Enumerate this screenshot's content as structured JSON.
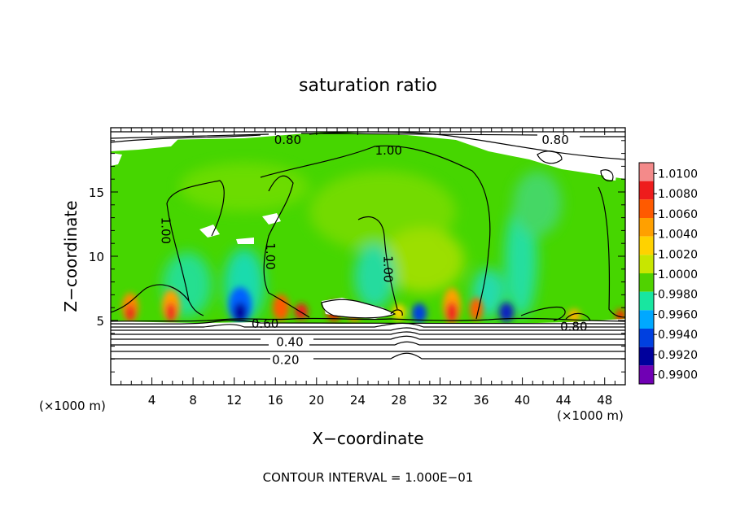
{
  "chart_data": {
    "type": "heatmap",
    "title": "saturation ratio",
    "xlabel": "X−coordinate",
    "ylabel": "Z−coordinate",
    "x_unit": "(×1000 m)",
    "y_unit": "(×1000 m)",
    "xlim": [
      0,
      50
    ],
    "ylim": [
      0,
      20
    ],
    "x_ticks": [
      4,
      8,
      12,
      16,
      20,
      24,
      28,
      32,
      36,
      40,
      44,
      48
    ],
    "y_ticks": [
      5,
      10,
      15
    ],
    "colorbar": {
      "levels": [
        "1.0100",
        "1.0080",
        "1.0060",
        "1.0040",
        "1.0020",
        "1.0000",
        "0.9980",
        "0.9960",
        "0.9940",
        "0.9920",
        "0.9900"
      ],
      "colors": [
        "#f48a8a",
        "#ee1c1c",
        "#ff5a00",
        "#ffa000",
        "#ffd200",
        "#c8e600",
        "#50d200",
        "#18e6a0",
        "#00a8ff",
        "#0040e0",
        "#00009c",
        "#7000b4"
      ],
      "placement": "right"
    },
    "contour_labels": [
      {
        "text": "0.80",
        "x": 17.2,
        "y": 19.1
      },
      {
        "text": "0.80",
        "x": 43.2,
        "y": 19.1
      },
      {
        "text": "1.00",
        "x": 27.0,
        "y": 18.3
      },
      {
        "text": "1.00",
        "x": 5.4,
        "y": 12.0
      },
      {
        "text": "1.00",
        "x": 15.6,
        "y": 10.0
      },
      {
        "text": "1.00",
        "x": 27.0,
        "y": 9.0
      },
      {
        "text": "0.60",
        "x": 15.0,
        "y": 4.8
      },
      {
        "text": "0.40",
        "x": 17.4,
        "y": 3.4
      },
      {
        "text": "0.20",
        "x": 17.0,
        "y": 2.0
      },
      {
        "text": "0.80",
        "x": 45.0,
        "y": 4.6
      }
    ],
    "footer": "CONTOUR INTERVAL = 1.000E−01"
  }
}
